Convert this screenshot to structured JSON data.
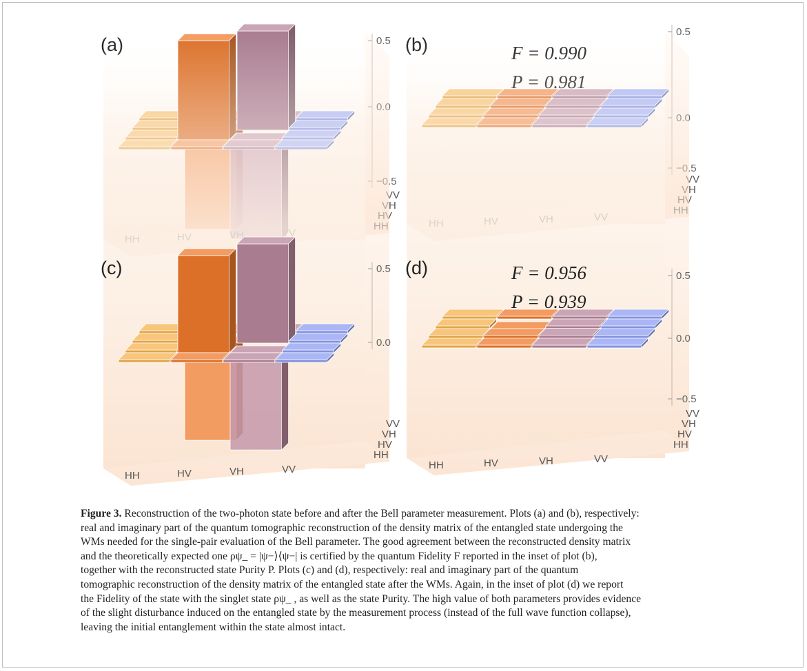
{
  "figure": {
    "axis_labels": [
      "HH",
      "HV",
      "VH",
      "VV"
    ],
    "colors": {
      "HH": "#f5b24d",
      "HV": "#ef7a2c",
      "VH": "#b9879c",
      "VV": "#8e9ef2",
      "floor": "#fbe7d6"
    },
    "panels": [
      {
        "label": "(a)",
        "part": "real",
        "z_ticks": [
          "0.5",
          "0.0",
          "−0.5"
        ],
        "fidelity": "",
        "purity": "",
        "matrix": [
          [
            0,
            0,
            0,
            0
          ],
          [
            0,
            0.5,
            -0.5,
            0
          ],
          [
            0,
            -0.5,
            0.5,
            0
          ],
          [
            0,
            0,
            0,
            0
          ]
        ]
      },
      {
        "label": "(b)",
        "part": "imaginary",
        "z_ticks": [
          "0.5",
          "0.0",
          "−0.5"
        ],
        "fidelity": "F = 0.990",
        "purity": "P = 0.981",
        "matrix": [
          [
            0,
            0,
            0,
            0
          ],
          [
            0,
            0,
            0,
            0
          ],
          [
            0,
            0,
            0,
            0
          ],
          [
            0,
            0,
            0,
            0
          ]
        ]
      },
      {
        "label": "(c)",
        "part": "real",
        "z_ticks": [
          "0.5",
          "0.0"
        ],
        "fidelity": "",
        "purity": "",
        "matrix": [
          [
            0,
            0,
            0,
            0
          ],
          [
            0,
            0.49,
            -0.49,
            0
          ],
          [
            0,
            -0.49,
            0.5,
            0
          ],
          [
            0,
            0,
            0,
            0
          ]
        ]
      },
      {
        "label": "(d)",
        "part": "imaginary",
        "z_ticks": [
          "0.5",
          "0.0",
          "−0.5"
        ],
        "fidelity": "F = 0.956",
        "purity": "P = 0.939",
        "matrix": [
          [
            0,
            0,
            0,
            0
          ],
          [
            0,
            0.02,
            0.03,
            0
          ],
          [
            0,
            -0.03,
            0.02,
            0
          ],
          [
            0,
            0,
            0,
            0
          ]
        ]
      }
    ]
  },
  "caption": {
    "heading": "Figure 3.",
    "lines": [
      " Reconstruction of the two-photon state before and after the Bell parameter measurement. Plots (a) and (b), respectively:",
      "real and imaginary part of the quantum tomographic reconstruction of the density matrix of the entangled state undergoing the",
      "WMs needed for the single-pair evaluation of the Bell parameter. The good agreement between the reconstructed density matrix",
      "and the theoretically expected one ρψ_ = |ψ−⟩⟨ψ−| is certified by the quantum Fidelity F reported in the inset of plot (b),",
      "together with the reconstructed state Purity P. Plots (c) and (d), respectively: real and imaginary part of the quantum",
      "tomographic reconstruction of the density matrix of the entangled state after the WMs. Again, in the inset of plot (d) we report",
      "the Fidelity of the state with the singlet state ρψ_ , as well as the state Purity. The high value of both parameters provides evidence",
      "of the slight disturbance induced on the entangled state by the measurement process (instead of the full wave function collapse),",
      "leaving the initial entanglement within the state almost intact."
    ]
  }
}
